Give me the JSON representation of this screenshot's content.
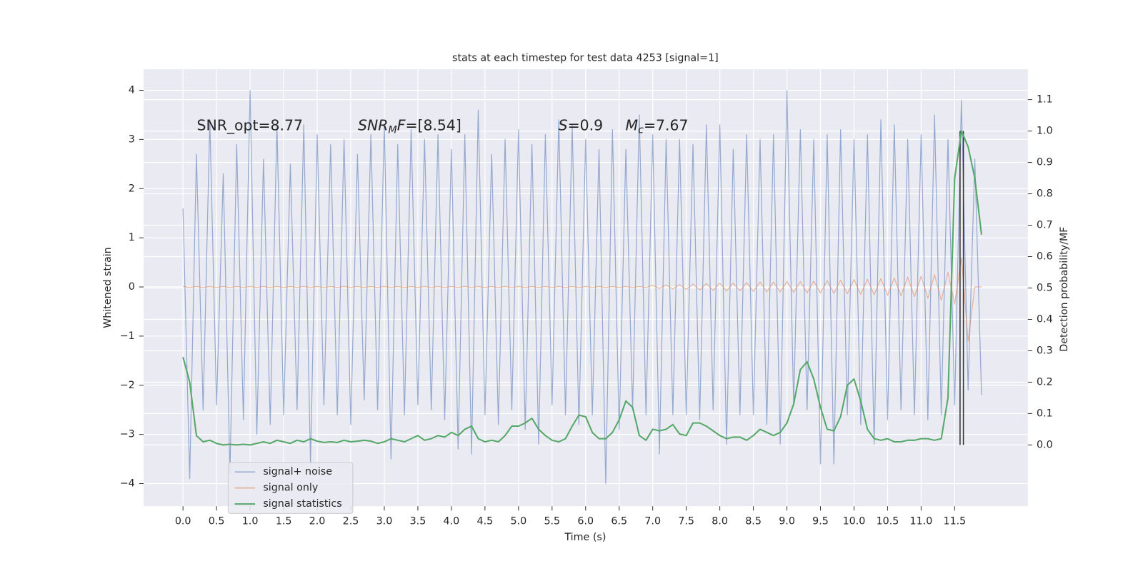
{
  "chart_data": {
    "type": "line",
    "title": "stats at each timestep for test data 4253 [signal=1]",
    "xlabel": "Time (s)",
    "ylabel": "Whitened strain",
    "y2label": "Detection probability/MF",
    "grid": true,
    "legend": "lower left",
    "xlim": [
      -0.587,
      12.59
    ],
    "ylim": [
      -4.46,
      4.43
    ],
    "y2lim": [
      -0.195,
      1.197
    ],
    "xticks": [
      {
        "value": 0,
        "label": "0.0"
      },
      0.5,
      {
        "value": 1,
        "label": "1.0"
      },
      1.5,
      {
        "value": 2,
        "label": "2.0"
      },
      2.5,
      {
        "value": 3,
        "label": "3.0"
      },
      3.5,
      {
        "value": 4,
        "label": "4.0"
      },
      4.5,
      {
        "value": 5,
        "label": "5.0"
      },
      5.5,
      {
        "value": 6,
        "label": "6.0"
      },
      6.5,
      {
        "value": 7,
        "label": "7.0"
      },
      7.5,
      {
        "value": 8,
        "label": "8.0"
      },
      8.5,
      {
        "value": 9,
        "label": "9.0"
      },
      9.5,
      {
        "value": 10,
        "label": "10.0"
      },
      10.5,
      {
        "value": 11,
        "label": "11.0"
      },
      11.5
    ],
    "yticks": [
      {
        "value": -4,
        "label": "−4"
      },
      {
        "value": -3,
        "label": "−3"
      },
      {
        "value": -2,
        "label": "−2"
      },
      {
        "value": -1,
        "label": "−1"
      },
      0,
      1,
      2,
      3,
      4
    ],
    "y2ticks": [
      {
        "value": 0,
        "label": "0.0"
      },
      0.1,
      0.2,
      0.3,
      0.4,
      0.5,
      0.6,
      0.7,
      0.8,
      0.9,
      {
        "value": 1,
        "label": "1.0"
      },
      1.1
    ],
    "x": [
      0,
      0.1,
      0.2,
      0.3,
      0.4,
      0.5,
      0.6,
      0.7,
      0.8,
      0.9,
      1,
      1.1,
      1.2,
      1.3,
      1.4,
      1.5,
      1.6,
      1.7,
      1.8,
      1.9,
      2,
      2.1,
      2.2,
      2.3,
      2.4,
      2.5,
      2.6,
      2.7,
      2.8,
      2.9,
      3,
      3.1,
      3.2,
      3.3,
      3.4,
      3.5,
      3.6,
      3.7,
      3.8,
      3.9,
      4,
      4.1,
      4.2,
      4.3,
      4.4,
      4.5,
      4.6,
      4.7,
      4.8,
      4.9,
      5,
      5.1,
      5.2,
      5.3,
      5.4,
      5.5,
      5.6,
      5.7,
      5.8,
      5.9,
      6,
      6.1,
      6.2,
      6.3,
      6.4,
      6.5,
      6.6,
      6.7,
      6.8,
      6.9,
      7,
      7.1,
      7.2,
      7.3,
      7.4,
      7.5,
      7.6,
      7.7,
      7.8,
      7.9,
      8,
      8.1,
      8.2,
      8.3,
      8.4,
      8.5,
      8.6,
      8.7,
      8.8,
      8.9,
      9,
      9.1,
      9.2,
      9.3,
      9.4,
      9.5,
      9.6,
      9.7,
      9.8,
      9.9,
      10,
      10.1,
      10.2,
      10.3,
      10.4,
      10.5,
      10.6,
      10.7,
      10.8,
      10.9,
      11,
      11.1,
      11.2,
      11.3,
      11.4,
      11.5,
      11.6,
      11.7,
      11.8,
      11.9
    ],
    "series": [
      {
        "name": "signal+ noise",
        "color": "#4c72b0",
        "opacity": 0.55,
        "values": [
          1.6,
          -3.9,
          2.7,
          -2.5,
          3.4,
          -2.4,
          2.3,
          -3.8,
          2.9,
          -2.7,
          4.0,
          -3.0,
          2.6,
          -2.8,
          3.3,
          -2.6,
          2.5,
          -2.5,
          3.3,
          -3.6,
          3.1,
          -2.4,
          2.9,
          -2.6,
          3.0,
          -2.8,
          2.7,
          -2.3,
          3.1,
          -2.5,
          3.3,
          -3.5,
          2.9,
          -2.6,
          3.2,
          -2.4,
          3.0,
          -2.5,
          3.1,
          -2.7,
          2.8,
          -3.3,
          3.1,
          -3.4,
          3.6,
          -2.6,
          2.7,
          -2.8,
          3.0,
          -2.5,
          3.2,
          -2.9,
          2.9,
          -3.2,
          3.1,
          -2.4,
          3.4,
          -2.6,
          3.3,
          -2.8,
          3.0,
          -2.6,
          2.8,
          -4.0,
          3.2,
          -2.9,
          2.8,
          -2.5,
          3.5,
          -2.6,
          3.1,
          -3.4,
          3.0,
          -2.6,
          3.0,
          -2.6,
          2.9,
          -2.7,
          3.3,
          -2.5,
          3.3,
          -3.2,
          2.8,
          -2.6,
          3.1,
          -2.6,
          3.0,
          -2.8,
          3.1,
          -3.2,
          4.0,
          -2.4,
          3.2,
          -2.5,
          3.0,
          -3.6,
          3.1,
          -3.6,
          3.2,
          -2.6,
          3.0,
          -2.8,
          3.1,
          -3.2,
          3.4,
          -2.7,
          3.3,
          -2.5,
          3.0,
          -2.6,
          3.1,
          -2.7,
          3.5,
          -2.6,
          3.0,
          -2.4,
          3.8,
          -2.1,
          2.6,
          -2.2
        ]
      },
      {
        "name": "signal only",
        "color": "#dd8452",
        "opacity": 0.55,
        "values": [
          0.01,
          -0.01,
          0.01,
          -0.01,
          0.01,
          -0.01,
          0.01,
          -0.01,
          0.01,
          -0.01,
          0.01,
          -0.01,
          0.01,
          -0.01,
          0.01,
          -0.01,
          0.01,
          -0.01,
          0.01,
          -0.01,
          0.01,
          -0.01,
          0.01,
          -0.01,
          0.01,
          -0.01,
          0.01,
          -0.01,
          0.01,
          -0.01,
          0.01,
          -0.01,
          0.01,
          -0.01,
          0.01,
          -0.01,
          0.01,
          -0.01,
          0.01,
          -0.01,
          0.01,
          -0.01,
          0.01,
          -0.01,
          0.01,
          -0.01,
          0.01,
          -0.01,
          0.01,
          -0.01,
          0.01,
          -0.01,
          0.01,
          -0.01,
          0.01,
          -0.01,
          0.01,
          -0.01,
          0.01,
          -0.01,
          0.01,
          -0.01,
          0.01,
          -0.01,
          0.01,
          -0.01,
          0.01,
          -0.01,
          0.01,
          -0.01,
          0.03,
          -0.03,
          0.04,
          -0.04,
          0.05,
          -0.05,
          0.06,
          -0.06,
          0.07,
          -0.07,
          0.08,
          -0.08,
          0.08,
          -0.08,
          0.09,
          -0.09,
          0.1,
          -0.1,
          0.1,
          -0.1,
          0.11,
          -0.11,
          0.11,
          -0.12,
          0.12,
          -0.12,
          0.13,
          -0.13,
          0.14,
          -0.14,
          0.15,
          -0.15,
          0.16,
          -0.16,
          0.17,
          -0.17,
          0.18,
          -0.18,
          0.2,
          -0.2,
          0.22,
          -0.23,
          0.25,
          -0.27,
          0.3,
          -0.35,
          0.6,
          -1.1,
          0,
          0
        ]
      },
      {
        "name": "signal statistics",
        "color": "#55a868",
        "opacity": 1,
        "axis": "y2",
        "values": [
          0.28,
          0.2,
          0.03,
          0.01,
          0.015,
          0.005,
          0.0,
          0.002,
          0.0,
          0.002,
          0.0,
          0.005,
          0.01,
          0.005,
          0.015,
          0.01,
          0.005,
          0.015,
          0.01,
          0.02,
          0.012,
          0.008,
          0.01,
          0.008,
          0.015,
          0.01,
          0.012,
          0.015,
          0.012,
          0.005,
          0.01,
          0.02,
          0.015,
          0.01,
          0.02,
          0.03,
          0.015,
          0.02,
          0.03,
          0.025,
          0.04,
          0.03,
          0.05,
          0.06,
          0.02,
          0.01,
          0.015,
          0.01,
          0.03,
          0.06,
          0.06,
          0.07,
          0.085,
          0.05,
          0.03,
          0.015,
          0.01,
          0.02,
          0.06,
          0.095,
          0.09,
          0.04,
          0.02,
          0.02,
          0.04,
          0.08,
          0.14,
          0.12,
          0.03,
          0.015,
          0.05,
          0.045,
          0.05,
          0.065,
          0.035,
          0.03,
          0.07,
          0.07,
          0.06,
          0.045,
          0.03,
          0.02,
          0.025,
          0.025,
          0.015,
          0.03,
          0.05,
          0.04,
          0.03,
          0.04,
          0.07,
          0.13,
          0.24,
          0.265,
          0.21,
          0.12,
          0.05,
          0.045,
          0.09,
          0.19,
          0.21,
          0.14,
          0.05,
          0.02,
          0.015,
          0.02,
          0.01,
          0.01,
          0.015,
          0.015,
          0.02,
          0.02,
          0.015,
          0.02,
          0.15,
          0.85,
          1.0,
          0.95,
          0.85,
          0.67
        ]
      }
    ],
    "vlines": {
      "x": [
        11.58,
        11.63
      ],
      "y2": [
        0,
        1
      ],
      "color": "#333333"
    },
    "annotations": [
      {
        "parts": [
          {
            "text": "SNR_opt=8.77"
          }
        ]
      },
      {
        "parts": [
          {
            "text": "SNR",
            "italic": true
          },
          {
            "text": "M",
            "italic": true,
            "sub": true
          },
          {
            "text": "F",
            "italic": true
          },
          {
            "text": "=[8.54]"
          }
        ]
      },
      {
        "parts": [
          {
            "text": "S",
            "italic": true
          },
          {
            "text": "=0.9"
          }
        ]
      },
      {
        "parts": [
          {
            "text": "M",
            "italic": true
          },
          {
            "text": "c",
            "italic": true,
            "sub": true
          },
          {
            "text": "=7.67"
          }
        ]
      }
    ]
  }
}
